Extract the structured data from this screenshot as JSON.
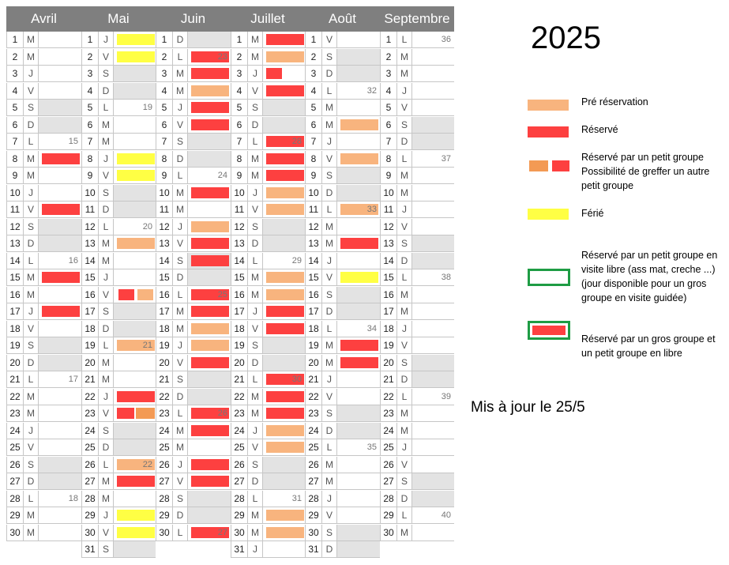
{
  "year": "2025",
  "updated": "Mis à jour le 25/5",
  "legend": [
    {
      "label": "Pré réservation",
      "type": "orange"
    },
    {
      "label": "Réservé",
      "type": "red"
    },
    {
      "label": "Réservé par un petit groupe\nPossibilité de greffer un autre petit groupe",
      "type": "split"
    },
    {
      "label": "Férié",
      "type": "yellow"
    },
    {
      "label": "Réservé par un petit groupe en visite libre (ass mat, creche ...) (jour disponible pour un gros groupe en visite guidée)",
      "type": "outline"
    },
    {
      "label": "Réservé par un gros groupe et un petit groupe en libre",
      "type": "outline-red"
    }
  ],
  "colors": {
    "red": "#fd4040",
    "orange": "#f8b47e",
    "yellow": "#ffff44",
    "dark_orange": "#f39a54",
    "green": "#1e9c44",
    "header": "#7f7f7f"
  },
  "months": [
    {
      "name": "Avril",
      "days": [
        {
          "n": "1",
          "l": "M"
        },
        {
          "n": "2",
          "l": "M"
        },
        {
          "n": "3",
          "l": "J"
        },
        {
          "n": "4",
          "l": "V"
        },
        {
          "n": "5",
          "l": "S",
          "we": true
        },
        {
          "n": "6",
          "l": "D",
          "we": true
        },
        {
          "n": "7",
          "l": "L",
          "wk": "15"
        },
        {
          "n": "8",
          "l": "M",
          "mk": "red"
        },
        {
          "n": "9",
          "l": "M"
        },
        {
          "n": "10",
          "l": "J"
        },
        {
          "n": "11",
          "l": "V",
          "mk": "red"
        },
        {
          "n": "12",
          "l": "S",
          "we": true
        },
        {
          "n": "13",
          "l": "D",
          "we": true
        },
        {
          "n": "14",
          "l": "L",
          "wk": "16"
        },
        {
          "n": "15",
          "l": "M",
          "mk": "red"
        },
        {
          "n": "16",
          "l": "M"
        },
        {
          "n": "17",
          "l": "J",
          "mk": "red"
        },
        {
          "n": "18",
          "l": "V"
        },
        {
          "n": "19",
          "l": "S",
          "we": true
        },
        {
          "n": "20",
          "l": "D",
          "we": true
        },
        {
          "n": "21",
          "l": "L",
          "wk": "17"
        },
        {
          "n": "22",
          "l": "M"
        },
        {
          "n": "23",
          "l": "M"
        },
        {
          "n": "24",
          "l": "J"
        },
        {
          "n": "25",
          "l": "V"
        },
        {
          "n": "26",
          "l": "S",
          "we": true
        },
        {
          "n": "27",
          "l": "D",
          "we": true
        },
        {
          "n": "28",
          "l": "L",
          "wk": "18"
        },
        {
          "n": "29",
          "l": "M"
        },
        {
          "n": "30",
          "l": "M"
        }
      ]
    },
    {
      "name": "Mai",
      "days": [
        {
          "n": "1",
          "l": "J",
          "mk": "yellow"
        },
        {
          "n": "2",
          "l": "V",
          "mk": "yellow"
        },
        {
          "n": "3",
          "l": "S",
          "we": true
        },
        {
          "n": "4",
          "l": "D",
          "we": true
        },
        {
          "n": "5",
          "l": "L",
          "wk": "19"
        },
        {
          "n": "6",
          "l": "M"
        },
        {
          "n": "7",
          "l": "M"
        },
        {
          "n": "8",
          "l": "J",
          "mk": "yellow"
        },
        {
          "n": "9",
          "l": "V",
          "mk": "yellow"
        },
        {
          "n": "10",
          "l": "S",
          "we": true
        },
        {
          "n": "11",
          "l": "D",
          "we": true
        },
        {
          "n": "12",
          "l": "L",
          "wk": "20"
        },
        {
          "n": "13",
          "l": "M",
          "mk": "orange"
        },
        {
          "n": "14",
          "l": "M"
        },
        {
          "n": "15",
          "l": "J"
        },
        {
          "n": "16",
          "l": "V",
          "mk": "split"
        },
        {
          "n": "17",
          "l": "S",
          "we": true
        },
        {
          "n": "18",
          "l": "D",
          "we": true
        },
        {
          "n": "19",
          "l": "L",
          "wk": "21",
          "mk": "orange"
        },
        {
          "n": "20",
          "l": "M"
        },
        {
          "n": "21",
          "l": "M"
        },
        {
          "n": "22",
          "l": "J",
          "mk": "red"
        },
        {
          "n": "23",
          "l": "V",
          "mk": "split2"
        },
        {
          "n": "24",
          "l": "S",
          "we": true
        },
        {
          "n": "25",
          "l": "D",
          "we": true
        },
        {
          "n": "26",
          "l": "L",
          "wk": "22",
          "mk": "orange"
        },
        {
          "n": "27",
          "l": "M",
          "mk": "red"
        },
        {
          "n": "28",
          "l": "M"
        },
        {
          "n": "29",
          "l": "J",
          "mk": "yellow"
        },
        {
          "n": "30",
          "l": "V",
          "mk": "yellow"
        },
        {
          "n": "31",
          "l": "S",
          "we": true
        }
      ]
    },
    {
      "name": "Juin",
      "days": [
        {
          "n": "1",
          "l": "D",
          "we": true
        },
        {
          "n": "2",
          "l": "L",
          "wk": "23",
          "mk": "red"
        },
        {
          "n": "3",
          "l": "M",
          "mk": "red"
        },
        {
          "n": "4",
          "l": "M",
          "mk": "orange"
        },
        {
          "n": "5",
          "l": "J",
          "mk": "red"
        },
        {
          "n": "6",
          "l": "V",
          "mk": "red"
        },
        {
          "n": "7",
          "l": "S",
          "we": true
        },
        {
          "n": "8",
          "l": "D",
          "we": true
        },
        {
          "n": "9",
          "l": "L",
          "wk": "24"
        },
        {
          "n": "10",
          "l": "M",
          "mk": "red"
        },
        {
          "n": "11",
          "l": "M"
        },
        {
          "n": "12",
          "l": "J",
          "mk": "orange"
        },
        {
          "n": "13",
          "l": "V",
          "mk": "red"
        },
        {
          "n": "14",
          "l": "S",
          "we": true,
          "mk": "red"
        },
        {
          "n": "15",
          "l": "D",
          "we": true
        },
        {
          "n": "16",
          "l": "L",
          "wk": "25",
          "mk": "red"
        },
        {
          "n": "17",
          "l": "M",
          "mk": "red"
        },
        {
          "n": "18",
          "l": "M",
          "mk": "orange"
        },
        {
          "n": "19",
          "l": "J",
          "mk": "orange"
        },
        {
          "n": "20",
          "l": "V",
          "mk": "red"
        },
        {
          "n": "21",
          "l": "S",
          "we": true
        },
        {
          "n": "22",
          "l": "D",
          "we": true
        },
        {
          "n": "23",
          "l": "L",
          "wk": "26",
          "mk": "red"
        },
        {
          "n": "24",
          "l": "M",
          "mk": "red"
        },
        {
          "n": "25",
          "l": "M"
        },
        {
          "n": "26",
          "l": "J",
          "mk": "red"
        },
        {
          "n": "27",
          "l": "V",
          "mk": "red"
        },
        {
          "n": "28",
          "l": "S",
          "we": true
        },
        {
          "n": "29",
          "l": "D",
          "we": true
        },
        {
          "n": "30",
          "l": "L",
          "wk": "27",
          "mk": "red"
        }
      ]
    },
    {
      "name": "Juillet",
      "days": [
        {
          "n": "1",
          "l": "M",
          "mk": "red"
        },
        {
          "n": "2",
          "l": "M",
          "mk": "orange"
        },
        {
          "n": "3",
          "l": "J",
          "mk": "small-red"
        },
        {
          "n": "4",
          "l": "V",
          "mk": "red"
        },
        {
          "n": "5",
          "l": "S",
          "we": true
        },
        {
          "n": "6",
          "l": "D",
          "we": true
        },
        {
          "n": "7",
          "l": "L",
          "wk": "28",
          "mk": "red"
        },
        {
          "n": "8",
          "l": "M",
          "mk": "red"
        },
        {
          "n": "9",
          "l": "M",
          "mk": "red"
        },
        {
          "n": "10",
          "l": "J",
          "mk": "orange"
        },
        {
          "n": "11",
          "l": "V",
          "mk": "orange"
        },
        {
          "n": "12",
          "l": "S",
          "we": true
        },
        {
          "n": "13",
          "l": "D",
          "we": true
        },
        {
          "n": "14",
          "l": "L",
          "wk": "29"
        },
        {
          "n": "15",
          "l": "M",
          "mk": "orange"
        },
        {
          "n": "16",
          "l": "M",
          "mk": "orange"
        },
        {
          "n": "17",
          "l": "J",
          "mk": "red"
        },
        {
          "n": "18",
          "l": "V",
          "mk": "red"
        },
        {
          "n": "19",
          "l": "S",
          "we": true
        },
        {
          "n": "20",
          "l": "D",
          "we": true
        },
        {
          "n": "21",
          "l": "L",
          "wk": "30",
          "mk": "red"
        },
        {
          "n": "22",
          "l": "M",
          "mk": "red"
        },
        {
          "n": "23",
          "l": "M",
          "mk": "red"
        },
        {
          "n": "24",
          "l": "J",
          "mk": "orange"
        },
        {
          "n": "25",
          "l": "V",
          "mk": "orange"
        },
        {
          "n": "26",
          "l": "S",
          "we": true
        },
        {
          "n": "27",
          "l": "D",
          "we": true
        },
        {
          "n": "28",
          "l": "L",
          "wk": "31"
        },
        {
          "n": "29",
          "l": "M",
          "mk": "orange"
        },
        {
          "n": "30",
          "l": "M",
          "mk": "orange"
        },
        {
          "n": "31",
          "l": "J"
        }
      ]
    },
    {
      "name": "Août",
      "days": [
        {
          "n": "1",
          "l": "V"
        },
        {
          "n": "2",
          "l": "S",
          "we": true
        },
        {
          "n": "3",
          "l": "D",
          "we": true
        },
        {
          "n": "4",
          "l": "L",
          "wk": "32"
        },
        {
          "n": "5",
          "l": "M"
        },
        {
          "n": "6",
          "l": "M",
          "mk": "orange"
        },
        {
          "n": "7",
          "l": "J"
        },
        {
          "n": "8",
          "l": "V",
          "mk": "orange"
        },
        {
          "n": "9",
          "l": "S",
          "we": true
        },
        {
          "n": "10",
          "l": "D",
          "we": true
        },
        {
          "n": "11",
          "l": "L",
          "wk": "33",
          "mk": "orange"
        },
        {
          "n": "12",
          "l": "M"
        },
        {
          "n": "13",
          "l": "M",
          "mk": "red"
        },
        {
          "n": "14",
          "l": "J"
        },
        {
          "n": "15",
          "l": "V",
          "mk": "yellow"
        },
        {
          "n": "16",
          "l": "S",
          "we": true
        },
        {
          "n": "17",
          "l": "D",
          "we": true
        },
        {
          "n": "18",
          "l": "L",
          "wk": "34"
        },
        {
          "n": "19",
          "l": "M",
          "mk": "red"
        },
        {
          "n": "20",
          "l": "M",
          "mk": "red"
        },
        {
          "n": "21",
          "l": "J"
        },
        {
          "n": "22",
          "l": "V"
        },
        {
          "n": "23",
          "l": "S",
          "we": true
        },
        {
          "n": "24",
          "l": "D",
          "we": true
        },
        {
          "n": "25",
          "l": "L",
          "wk": "35"
        },
        {
          "n": "26",
          "l": "M"
        },
        {
          "n": "27",
          "l": "M"
        },
        {
          "n": "28",
          "l": "J"
        },
        {
          "n": "29",
          "l": "V"
        },
        {
          "n": "30",
          "l": "S",
          "we": true
        },
        {
          "n": "31",
          "l": "D",
          "we": true
        }
      ]
    },
    {
      "name": "Septembre",
      "days": [
        {
          "n": "1",
          "l": "L",
          "wk": "36"
        },
        {
          "n": "2",
          "l": "M"
        },
        {
          "n": "3",
          "l": "M"
        },
        {
          "n": "4",
          "l": "J"
        },
        {
          "n": "5",
          "l": "V"
        },
        {
          "n": "6",
          "l": "S",
          "we": true
        },
        {
          "n": "7",
          "l": "D",
          "we": true
        },
        {
          "n": "8",
          "l": "L",
          "wk": "37"
        },
        {
          "n": "9",
          "l": "M"
        },
        {
          "n": "10",
          "l": "M"
        },
        {
          "n": "11",
          "l": "J"
        },
        {
          "n": "12",
          "l": "V"
        },
        {
          "n": "13",
          "l": "S",
          "we": true
        },
        {
          "n": "14",
          "l": "D",
          "we": true
        },
        {
          "n": "15",
          "l": "L",
          "wk": "38"
        },
        {
          "n": "16",
          "l": "M"
        },
        {
          "n": "17",
          "l": "M"
        },
        {
          "n": "18",
          "l": "J"
        },
        {
          "n": "19",
          "l": "V"
        },
        {
          "n": "20",
          "l": "S",
          "we": true
        },
        {
          "n": "21",
          "l": "D",
          "we": true
        },
        {
          "n": "22",
          "l": "L",
          "wk": "39"
        },
        {
          "n": "23",
          "l": "M"
        },
        {
          "n": "24",
          "l": "M"
        },
        {
          "n": "25",
          "l": "J"
        },
        {
          "n": "26",
          "l": "V"
        },
        {
          "n": "27",
          "l": "S",
          "we": true
        },
        {
          "n": "28",
          "l": "D",
          "we": true
        },
        {
          "n": "29",
          "l": "L",
          "wk": "40"
        },
        {
          "n": "30",
          "l": "M"
        }
      ]
    }
  ]
}
